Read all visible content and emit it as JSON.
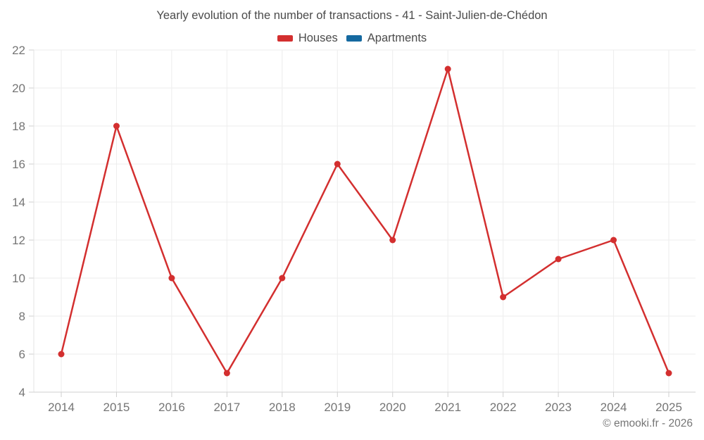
{
  "title": "Yearly evolution of the number of transactions - 41 - Saint-Julien-de-Chédon",
  "legend": {
    "items": [
      {
        "label": "Houses",
        "color": "#d32f2f"
      },
      {
        "label": "Apartments",
        "color": "#1569a0"
      }
    ]
  },
  "footer": {
    "copyright": "© emooki.fr - 2026"
  },
  "colors": {
    "houses": "#d32f2f",
    "apartments": "#1569a0",
    "grid": "#ededed",
    "axis": "#cfcfcf",
    "tick_text": "#757575"
  },
  "chart_data": {
    "type": "line",
    "title": "Yearly evolution of the number of transactions - 41 - Saint-Julien-de-Chédon",
    "categories": [
      "2014",
      "2015",
      "2016",
      "2017",
      "2018",
      "2019",
      "2020",
      "2021",
      "2022",
      "2023",
      "2024",
      "2025"
    ],
    "series": [
      {
        "name": "Houses",
        "color": "#d32f2f",
        "values": [
          6,
          18,
          10,
          5,
          10,
          16,
          12,
          21,
          9,
          11,
          12,
          5
        ]
      },
      {
        "name": "Apartments",
        "color": "#1569a0",
        "values": []
      }
    ],
    "xlabel": "",
    "ylabel": "",
    "ylim": [
      4,
      22
    ],
    "y_ticks": [
      4,
      6,
      8,
      10,
      12,
      14,
      16,
      18,
      20,
      22
    ],
    "grid": true,
    "legend_position": "top",
    "marker": "circle"
  }
}
